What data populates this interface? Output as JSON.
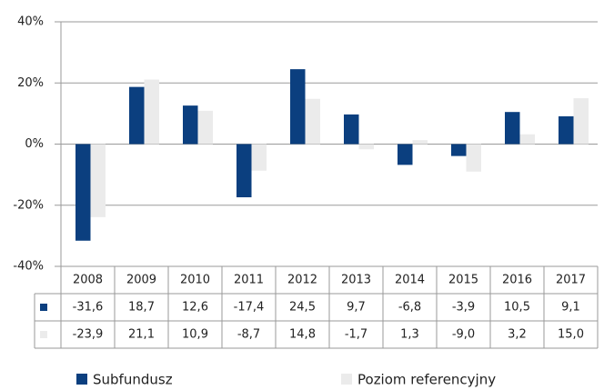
{
  "chart_data": {
    "type": "bar",
    "categories": [
      "2008",
      "2009",
      "2010",
      "2011",
      "2012",
      "2013",
      "2014",
      "2015",
      "2016",
      "2017"
    ],
    "series": [
      {
        "name": "Subfundusz",
        "color": "#0b3f7f",
        "values": [
          -31.6,
          18.7,
          12.6,
          -17.4,
          24.5,
          9.7,
          -6.8,
          -3.9,
          10.5,
          9.1
        ],
        "value_labels": [
          "-31,6",
          "18,7",
          "12,6",
          "-17,4",
          "24,5",
          "9,7",
          "-6,8",
          "-3,9",
          "10,5",
          "9,1"
        ]
      },
      {
        "name": "Poziom referencyjny",
        "color": "#ebebeb",
        "values": [
          -23.9,
          21.1,
          10.9,
          -8.7,
          14.8,
          -1.7,
          1.3,
          -9.0,
          3.2,
          15.0
        ],
        "value_labels": [
          "-23,9",
          "21,1",
          "10,9",
          "-8,7",
          "14,8",
          "-1,7",
          "1,3",
          "-9,0",
          "3,2",
          "15,0"
        ]
      }
    ],
    "ylim": [
      -40,
      40
    ],
    "yticks": [
      {
        "value": -40,
        "label": "-40%"
      },
      {
        "value": -20,
        "label": "-20%"
      },
      {
        "value": 0,
        "label": "0%"
      },
      {
        "value": 20,
        "label": "20%"
      },
      {
        "value": 40,
        "label": "40%"
      }
    ],
    "grid": true
  }
}
